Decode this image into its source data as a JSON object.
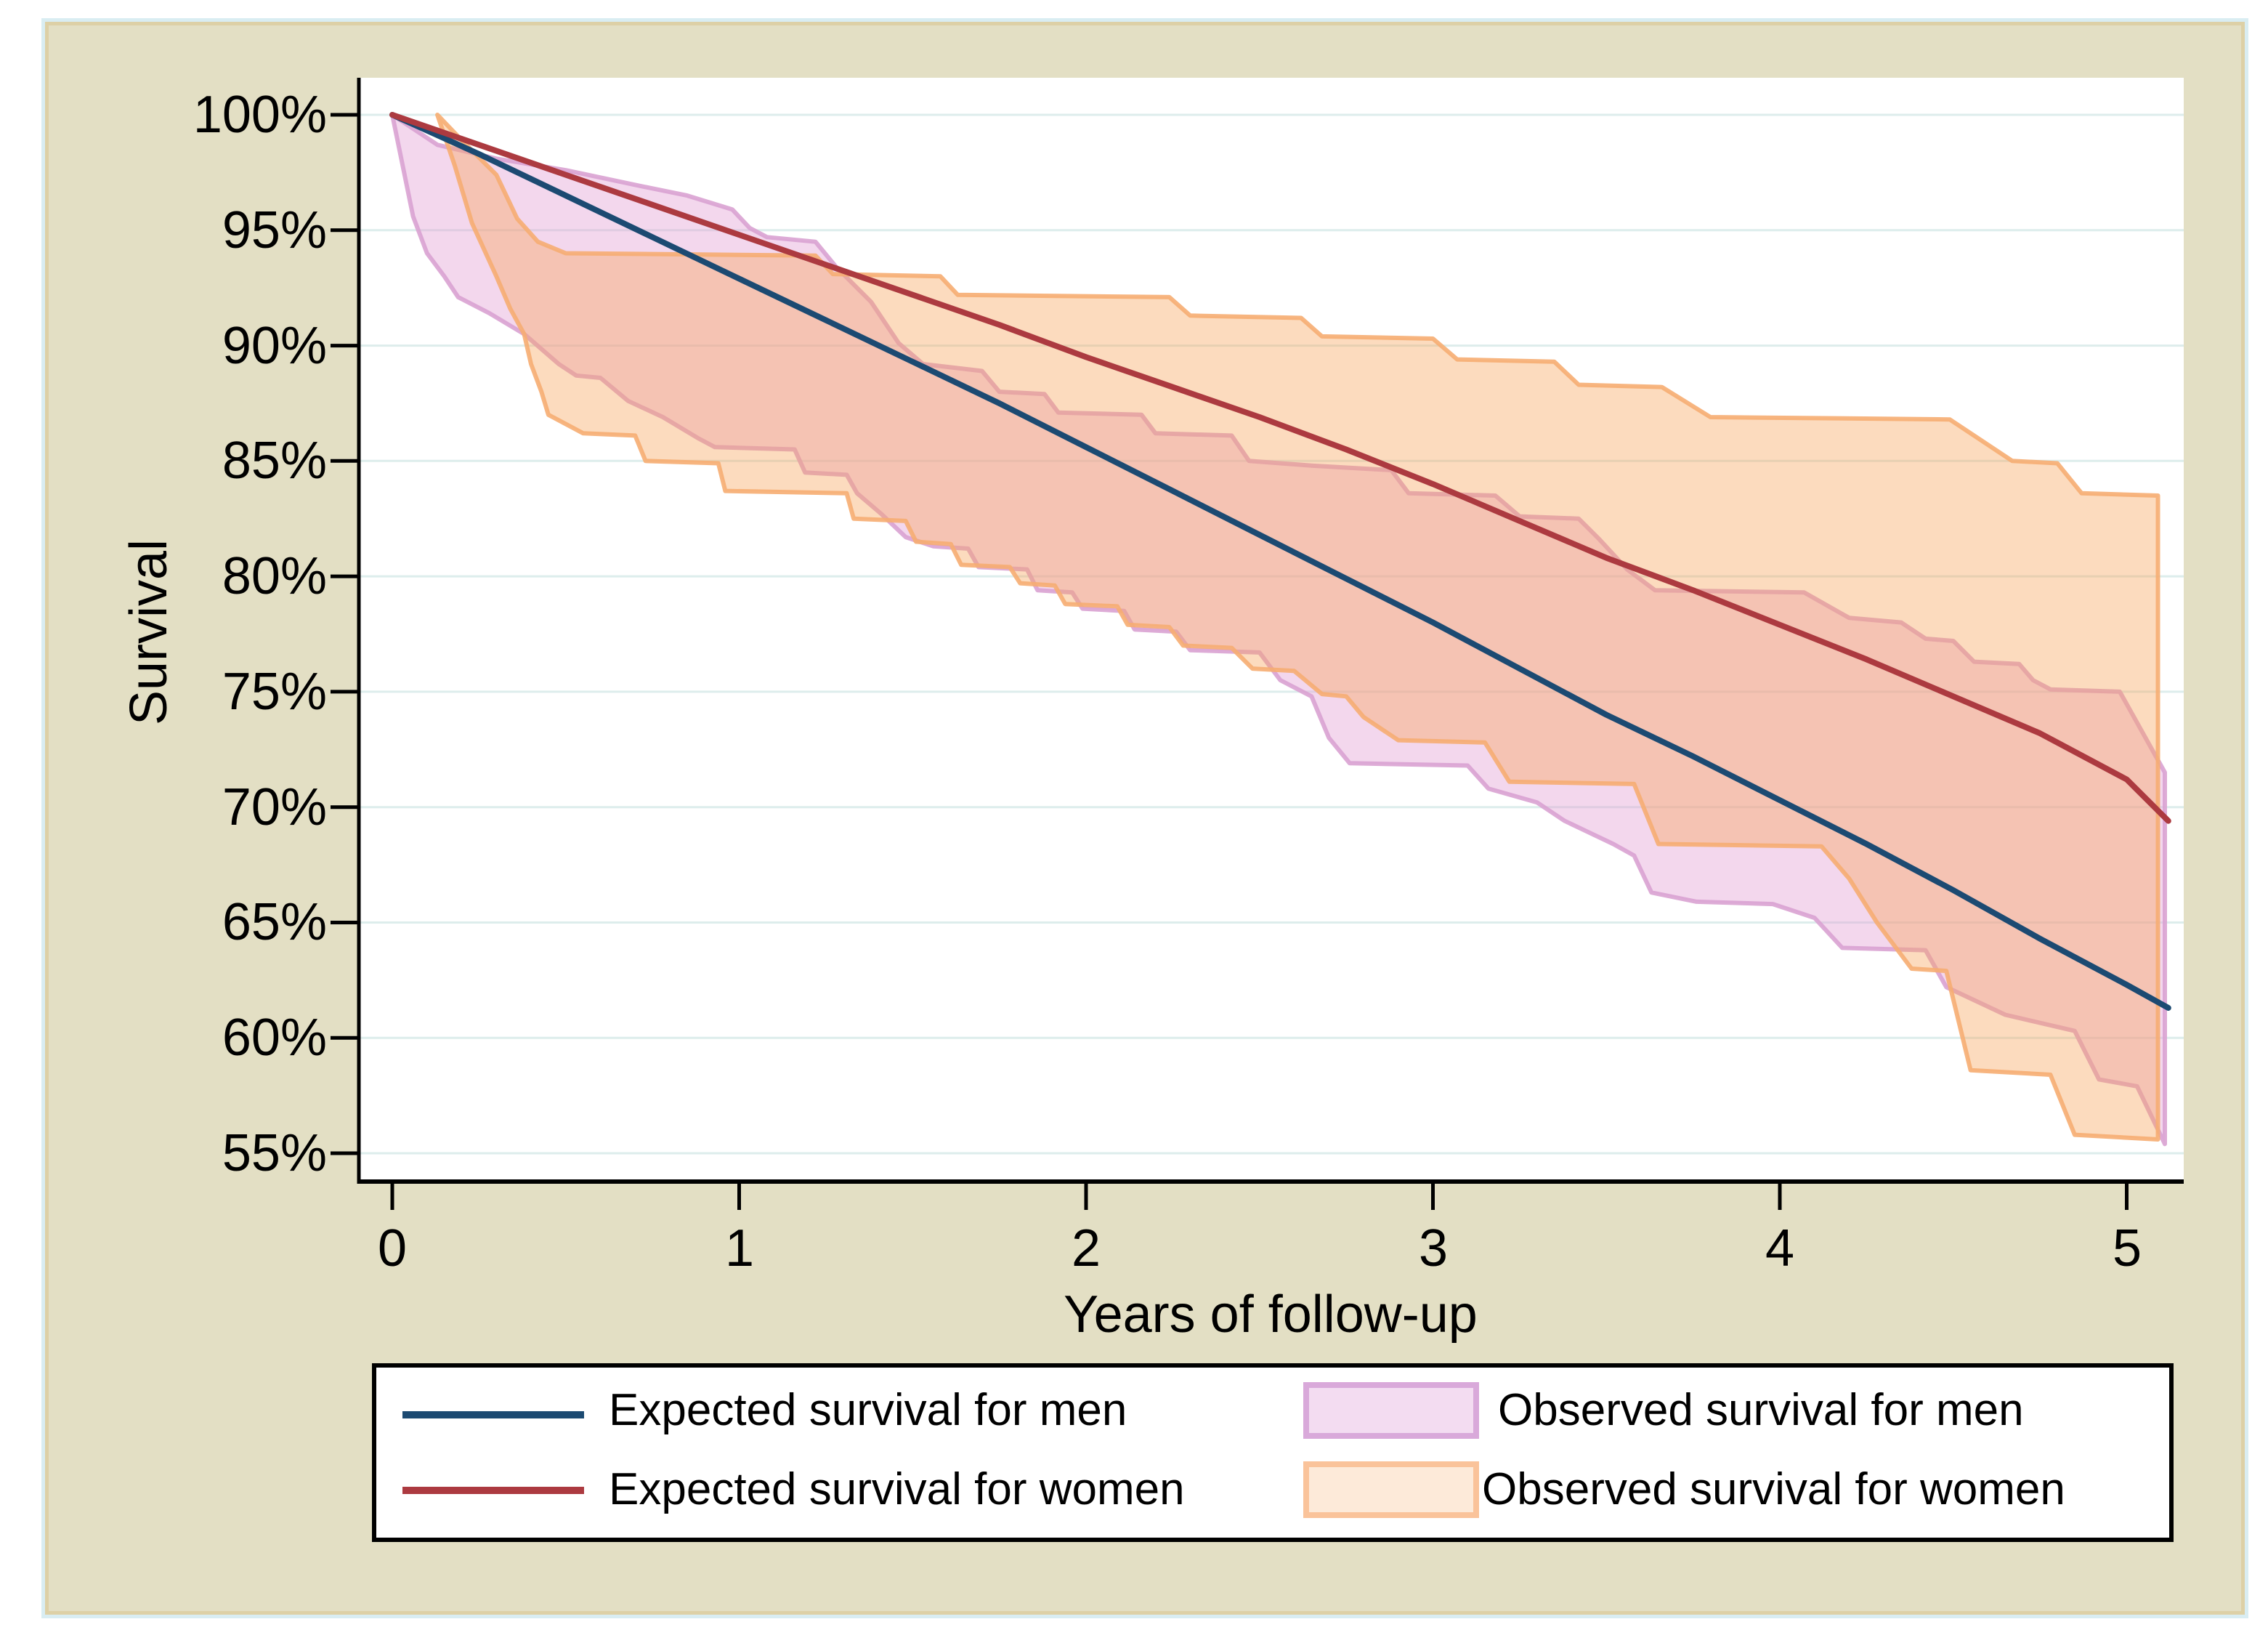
{
  "figure": {
    "canvas_background": "#e3dfc4",
    "plot_background": "#ffffff",
    "grid_color": "#ddedec",
    "axis_color": "#000000"
  },
  "axes": {
    "y": {
      "title": "Survival"
    },
    "x": {
      "title": "Years of follow-up"
    }
  },
  "legend": {
    "items": [
      {
        "type": "line",
        "color": "#1c4a72",
        "label": "Expected survival for men"
      },
      {
        "type": "band",
        "fill": "#f3dcf1",
        "border": "#d9a9da",
        "label": "Observed survival for men"
      },
      {
        "type": "line",
        "color": "#ac3a40",
        "label": "Expected survival for women"
      },
      {
        "type": "band",
        "fill": "#fdead9",
        "border": "#fac39a",
        "label": "Observed survival for women"
      }
    ]
  },
  "chart_data": {
    "type": "line",
    "title": "",
    "xlabel": "Years of follow-up",
    "ylabel": "Survival",
    "x_range": [
      0,
      5.16
    ],
    "y_range": [
      53.5,
      101.5
    ],
    "x_ticks": [
      0,
      1,
      2,
      3,
      4,
      5
    ],
    "x_tick_labels": [
      "0",
      "1",
      "2",
      "3",
      "4",
      "5"
    ],
    "y_ticks": [
      100,
      95,
      90,
      85,
      80,
      75,
      70,
      65,
      60,
      55
    ],
    "y_tick_labels": [
      "100%",
      "95%",
      "90%",
      "85%",
      "80%",
      "75%",
      "70%",
      "65%",
      "60%",
      "55%"
    ],
    "grid": "horizontal",
    "legend_position": "bottom",
    "series": [
      {
        "name": "Observed survival for men",
        "type": "band",
        "fill": "#e2a0d5",
        "fill_opacity": 0.42,
        "border": "#d9a2d2",
        "upper": [
          [
            0,
            100
          ],
          [
            0.13,
            98.7
          ],
          [
            0.3,
            98.1
          ],
          [
            0.5,
            97.6
          ],
          [
            0.72,
            96.9
          ],
          [
            0.85,
            96.5
          ],
          [
            0.98,
            95.9
          ],
          [
            1.03,
            95.1
          ],
          [
            1.08,
            94.7
          ],
          [
            1.22,
            94.5
          ],
          [
            1.28,
            93.4
          ],
          [
            1.38,
            91.9
          ],
          [
            1.46,
            90.1
          ],
          [
            1.53,
            89.2
          ],
          [
            1.7,
            88.9
          ],
          [
            1.75,
            88.0
          ],
          [
            1.88,
            87.9
          ],
          [
            1.92,
            87.1
          ],
          [
            2.16,
            87.0
          ],
          [
            2.2,
            86.2
          ],
          [
            2.42,
            86.1
          ],
          [
            2.47,
            85.0
          ],
          [
            2.65,
            84.8
          ],
          [
            2.88,
            84.6
          ],
          [
            2.93,
            83.6
          ],
          [
            3.18,
            83.5
          ],
          [
            3.25,
            82.6
          ],
          [
            3.42,
            82.5
          ],
          [
            3.48,
            81.6
          ],
          [
            3.56,
            80.3
          ],
          [
            3.64,
            79.4
          ],
          [
            4.07,
            79.3
          ],
          [
            4.2,
            78.2
          ],
          [
            4.35,
            78.0
          ],
          [
            4.42,
            77.3
          ],
          [
            4.5,
            77.2
          ],
          [
            4.56,
            76.3
          ],
          [
            4.69,
            76.2
          ],
          [
            4.73,
            75.5
          ],
          [
            4.78,
            75.1
          ],
          [
            4.98,
            75.0
          ],
          [
            5.11,
            71.5
          ]
        ],
        "lower": [
          [
            0,
            100
          ],
          [
            0.06,
            95.6
          ],
          [
            0.1,
            94.0
          ],
          [
            0.15,
            93.0
          ],
          [
            0.19,
            92.1
          ],
          [
            0.28,
            91.4
          ],
          [
            0.38,
            90.5
          ],
          [
            0.48,
            89.2
          ],
          [
            0.53,
            88.7
          ],
          [
            0.6,
            88.6
          ],
          [
            0.68,
            87.6
          ],
          [
            0.78,
            86.9
          ],
          [
            0.88,
            86.0
          ],
          [
            0.93,
            85.6
          ],
          [
            1.16,
            85.5
          ],
          [
            1.19,
            84.5
          ],
          [
            1.31,
            84.4
          ],
          [
            1.34,
            83.6
          ],
          [
            1.41,
            82.7
          ],
          [
            1.48,
            81.7
          ],
          [
            1.56,
            81.3
          ],
          [
            1.66,
            81.2
          ],
          [
            1.69,
            80.4
          ],
          [
            1.83,
            80.3
          ],
          [
            1.86,
            79.4
          ],
          [
            1.96,
            79.3
          ],
          [
            1.99,
            78.6
          ],
          [
            2.11,
            78.5
          ],
          [
            2.14,
            77.7
          ],
          [
            2.26,
            77.6
          ],
          [
            2.3,
            76.8
          ],
          [
            2.5,
            76.7
          ],
          [
            2.56,
            75.5
          ],
          [
            2.65,
            74.8
          ],
          [
            2.7,
            73.0
          ],
          [
            2.76,
            71.9
          ],
          [
            3.1,
            71.8
          ],
          [
            3.16,
            70.8
          ],
          [
            3.3,
            70.2
          ],
          [
            3.38,
            69.4
          ],
          [
            3.52,
            68.4
          ],
          [
            3.58,
            67.9
          ],
          [
            3.63,
            66.3
          ],
          [
            3.76,
            65.9
          ],
          [
            3.98,
            65.8
          ],
          [
            4.1,
            65.2
          ],
          [
            4.18,
            63.9
          ],
          [
            4.42,
            63.8
          ],
          [
            4.48,
            62.2
          ],
          [
            4.65,
            61.0
          ],
          [
            4.85,
            60.3
          ],
          [
            4.92,
            58.2
          ],
          [
            5.03,
            57.9
          ],
          [
            5.11,
            55.4
          ]
        ]
      },
      {
        "name": "Observed survival for women",
        "type": "band",
        "fill": "#f7a45c",
        "fill_opacity": 0.4,
        "border": "#f6ad72",
        "upper": [
          [
            0.13,
            100
          ],
          [
            0.2,
            98.9
          ],
          [
            0.3,
            97.4
          ],
          [
            0.36,
            95.5
          ],
          [
            0.42,
            94.5
          ],
          [
            0.5,
            94.0
          ],
          [
            1.22,
            93.9
          ],
          [
            1.27,
            93.1
          ],
          [
            1.58,
            93.0
          ],
          [
            1.63,
            92.2
          ],
          [
            2.24,
            92.1
          ],
          [
            2.3,
            91.3
          ],
          [
            2.62,
            91.2
          ],
          [
            2.68,
            90.4
          ],
          [
            3.0,
            90.3
          ],
          [
            3.07,
            89.4
          ],
          [
            3.35,
            89.3
          ],
          [
            3.42,
            88.3
          ],
          [
            3.66,
            88.2
          ],
          [
            3.8,
            86.9
          ],
          [
            4.49,
            86.8
          ],
          [
            4.67,
            85.0
          ],
          [
            4.8,
            84.9
          ],
          [
            4.87,
            83.6
          ],
          [
            5.09,
            83.5
          ]
        ],
        "lower": [
          [
            0.13,
            100
          ],
          [
            0.18,
            97.8
          ],
          [
            0.23,
            95.3
          ],
          [
            0.3,
            93.0
          ],
          [
            0.34,
            91.6
          ],
          [
            0.38,
            90.5
          ],
          [
            0.4,
            89.2
          ],
          [
            0.43,
            88.0
          ],
          [
            0.45,
            87.0
          ],
          [
            0.55,
            86.2
          ],
          [
            0.7,
            86.1
          ],
          [
            0.73,
            85.0
          ],
          [
            0.94,
            84.9
          ],
          [
            0.96,
            83.7
          ],
          [
            1.31,
            83.6
          ],
          [
            1.33,
            82.5
          ],
          [
            1.48,
            82.4
          ],
          [
            1.51,
            81.5
          ],
          [
            1.61,
            81.4
          ],
          [
            1.64,
            80.5
          ],
          [
            1.78,
            80.4
          ],
          [
            1.81,
            79.7
          ],
          [
            1.91,
            79.6
          ],
          [
            1.94,
            78.8
          ],
          [
            2.09,
            78.7
          ],
          [
            2.12,
            77.9
          ],
          [
            2.24,
            77.8
          ],
          [
            2.28,
            77.0
          ],
          [
            2.42,
            76.9
          ],
          [
            2.48,
            76.0
          ],
          [
            2.6,
            75.9
          ],
          [
            2.68,
            74.9
          ],
          [
            2.75,
            74.8
          ],
          [
            2.8,
            73.9
          ],
          [
            2.9,
            72.9
          ],
          [
            3.15,
            72.8
          ],
          [
            3.22,
            71.1
          ],
          [
            3.58,
            71.0
          ],
          [
            3.65,
            68.4
          ],
          [
            4.12,
            68.3
          ],
          [
            4.2,
            66.9
          ],
          [
            4.28,
            65.0
          ],
          [
            4.38,
            63.0
          ],
          [
            4.48,
            62.9
          ],
          [
            4.55,
            58.6
          ],
          [
            4.78,
            58.4
          ],
          [
            4.85,
            55.8
          ],
          [
            5.09,
            55.6
          ]
        ]
      },
      {
        "name": "Expected survival for men",
        "type": "line",
        "color": "#1c4a72",
        "points": [
          [
            0,
            100
          ],
          [
            0.25,
            98.3
          ],
          [
            0.5,
            96.5
          ],
          [
            0.75,
            94.7
          ],
          [
            1,
            92.9
          ],
          [
            1.25,
            91.1
          ],
          [
            1.5,
            89.3
          ],
          [
            1.75,
            87.5
          ],
          [
            2,
            85.6
          ],
          [
            2.25,
            83.7
          ],
          [
            2.5,
            81.8
          ],
          [
            2.75,
            79.9
          ],
          [
            3,
            78.0
          ],
          [
            3.25,
            76.0
          ],
          [
            3.5,
            74.0
          ],
          [
            3.75,
            72.2
          ],
          [
            4,
            70.3
          ],
          [
            4.25,
            68.4
          ],
          [
            4.5,
            66.4
          ],
          [
            4.75,
            64.3
          ],
          [
            5,
            62.3
          ],
          [
            5.12,
            61.3
          ]
        ]
      },
      {
        "name": "Expected survival for women",
        "type": "line",
        "color": "#ac3a40",
        "points": [
          [
            0,
            100
          ],
          [
            0.25,
            98.7
          ],
          [
            0.5,
            97.4
          ],
          [
            0.75,
            96.1
          ],
          [
            1,
            94.8
          ],
          [
            1.25,
            93.5
          ],
          [
            1.5,
            92.2
          ],
          [
            1.75,
            90.9
          ],
          [
            2,
            89.5
          ],
          [
            2.25,
            88.2
          ],
          [
            2.5,
            86.9
          ],
          [
            2.75,
            85.5
          ],
          [
            3,
            84.0
          ],
          [
            3.25,
            82.4
          ],
          [
            3.5,
            80.8
          ],
          [
            3.75,
            79.4
          ],
          [
            4,
            77.9
          ],
          [
            4.25,
            76.4
          ],
          [
            4.5,
            74.8
          ],
          [
            4.75,
            73.2
          ],
          [
            5,
            71.2
          ],
          [
            5.12,
            69.4
          ]
        ]
      }
    ]
  }
}
